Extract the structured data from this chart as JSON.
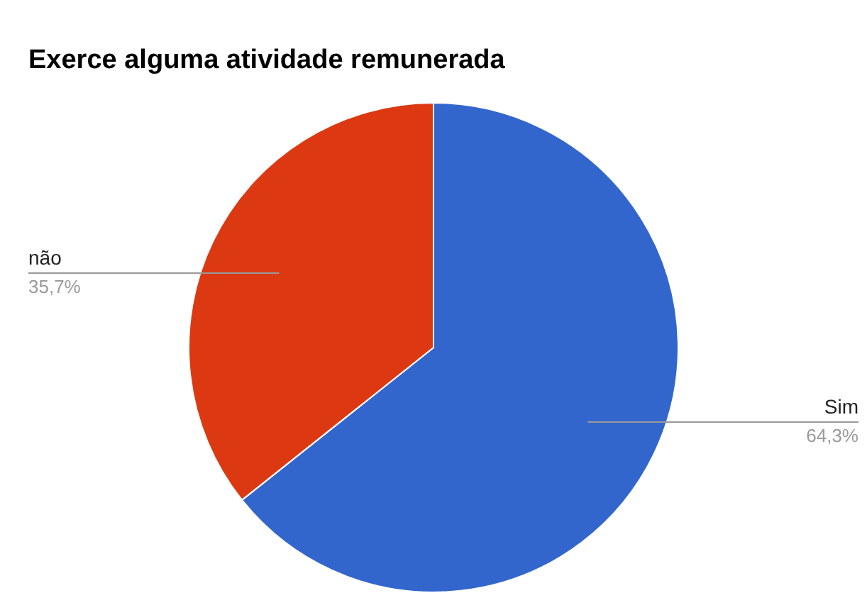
{
  "chart_data": {
    "type": "pie",
    "title": "Exerce alguma atividade remunerada",
    "categories": [
      "Sim",
      "não"
    ],
    "values": [
      64.3,
      35.7
    ],
    "colors": [
      "#3366cc",
      "#dc3912"
    ],
    "value_labels": [
      "64,3%",
      "35,7%"
    ]
  }
}
